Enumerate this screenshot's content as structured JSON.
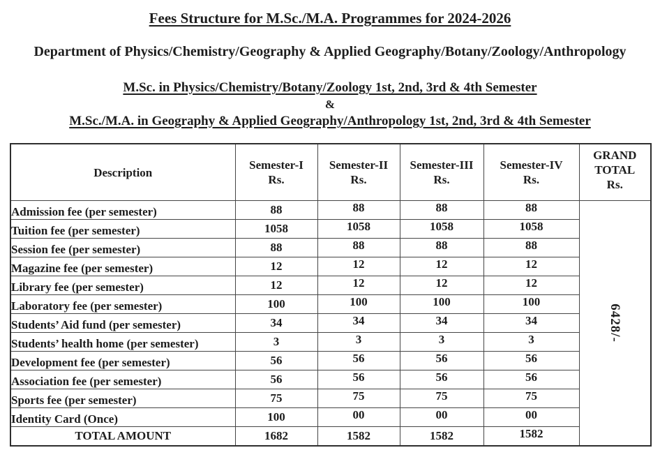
{
  "header": {
    "title": "Fees Structure for M.Sc./M.A. Programmes for 2024-2026",
    "department": "Department of Physics/Chemistry/Geography & Applied Geography/Botany/Zoology/Anthropology",
    "programme_line_1": "M.Sc. in Physics/Chemistry/Botany/Zoology 1st, 2nd, 3rd & 4th Semester",
    "ampersand": "&",
    "programme_line_2": "M.Sc./M.A. in Geography & Applied Geography/Anthropology 1st, 2nd, 3rd & 4th Semester"
  },
  "table": {
    "columns": [
      "Description",
      "Semester-I\nRs.",
      "Semester-II\nRs.",
      "Semester-III\nRs.",
      "Semester-IV\nRs.",
      "GRAND\nTOTAL\nRs."
    ],
    "rows": [
      {
        "description": "Admission fee (per semester)",
        "values": [
          "88",
          "88",
          "88",
          "88"
        ]
      },
      {
        "description": "Tuition fee (per semester)",
        "values": [
          "1058",
          "1058",
          "1058",
          "1058"
        ]
      },
      {
        "description": "Session fee (per semester)",
        "values": [
          "88",
          "88",
          "88",
          "88"
        ]
      },
      {
        "description": "Magazine fee (per semester)",
        "values": [
          "12",
          "12",
          "12",
          "12"
        ]
      },
      {
        "description": "Library fee (per semester)",
        "values": [
          "12",
          "12",
          "12",
          "12"
        ]
      },
      {
        "description": "Laboratory fee (per semester)",
        "values": [
          "100",
          "100",
          "100",
          "100"
        ]
      },
      {
        "description": "Students’ Aid fund (per semester)",
        "values": [
          "34",
          "34",
          "34",
          "34"
        ]
      },
      {
        "description": "Students’ health home (per semester)",
        "values": [
          "3",
          "3",
          "3",
          "3"
        ]
      },
      {
        "description": "Development fee (per semester)",
        "values": [
          "56",
          "56",
          "56",
          "56"
        ]
      },
      {
        "description": "Association fee (per semester)",
        "values": [
          "56",
          "56",
          "56",
          "56"
        ]
      },
      {
        "description": "Sports fee (per semester)",
        "values": [
          "75",
          "75",
          "75",
          "75"
        ]
      },
      {
        "description": "Identity Card (Once)",
        "values": [
          "100",
          "00",
          "00",
          "00"
        ]
      }
    ],
    "total_row": {
      "label": "TOTAL AMOUNT",
      "values": [
        "1682",
        "1582",
        "1582",
        "1582"
      ]
    },
    "grand_total": "6428/-"
  },
  "colors": {
    "background": "#ffffff",
    "text": "#1d1d1d",
    "border_outer": "#2e2e2e",
    "border_inner": "#454545"
  }
}
